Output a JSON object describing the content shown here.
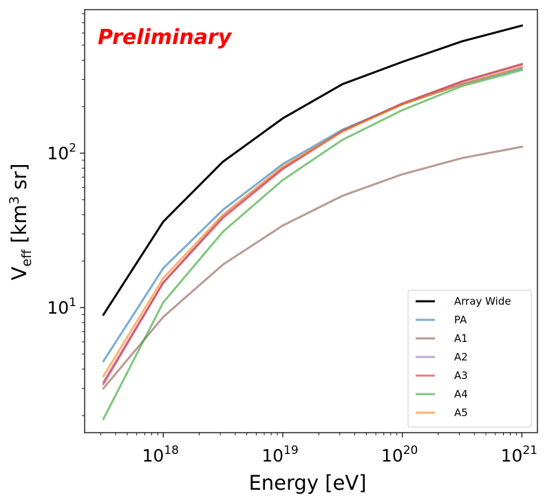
{
  "chart_data": {
    "type": "line",
    "title": "",
    "annotation": "Preliminary",
    "annotation_color": "#ff0000",
    "xlabel": "Energy [eV]",
    "ylabel": {
      "base": "V",
      "subscript": "eff",
      "units_pre": " [km",
      "units_sup": "3",
      "units_post": " sr]"
    },
    "xscale": "log",
    "yscale": "log",
    "xlim": [
      2.2e+17,
      1.35e+21
    ],
    "ylim": [
      1.55,
      850
    ],
    "x": [
      3.16e+17,
      1e+18,
      3.16e+18,
      1e+19,
      3.16e+19,
      1e+20,
      3.16e+20,
      1e+21
    ],
    "x_ticks": [
      {
        "value": 1e+18,
        "base": "10",
        "exp": "18"
      },
      {
        "value": 1e+19,
        "base": "10",
        "exp": "19"
      },
      {
        "value": 1e+20,
        "base": "10",
        "exp": "20"
      },
      {
        "value": 1e+21,
        "base": "10",
        "exp": "21"
      }
    ],
    "y_ticks": [
      {
        "value": 10,
        "base": "10",
        "exp": "1"
      },
      {
        "value": 100,
        "base": "10",
        "exp": "2"
      }
    ],
    "series": [
      {
        "name": "Array Wide",
        "color": "#000000",
        "opacity": 1.0,
        "values": [
          9.0,
          36,
          88,
          168,
          280,
          390,
          530,
          670
        ]
      },
      {
        "name": "PA",
        "color": "#1f77b4",
        "opacity": 0.6,
        "values": [
          4.5,
          18,
          43,
          85,
          142,
          207,
          280,
          355
        ]
      },
      {
        "name": "A1",
        "color": "#8c564b",
        "opacity": 0.6,
        "values": [
          3.0,
          8.7,
          19,
          34,
          53,
          73,
          93,
          110
        ]
      },
      {
        "name": "A2",
        "color": "#9467bd",
        "opacity": 0.6,
        "values": [
          3.3,
          14.5,
          39,
          80,
          140,
          210,
          290,
          375
        ]
      },
      {
        "name": "A3",
        "color": "#d62728",
        "opacity": 0.6,
        "values": [
          3.2,
          14.5,
          38,
          79,
          139,
          209,
          292,
          378
        ]
      },
      {
        "name": "A4",
        "color": "#2ca02c",
        "opacity": 0.6,
        "values": [
          1.9,
          10.8,
          31,
          67,
          122,
          190,
          272,
          345
        ]
      },
      {
        "name": "A5",
        "color": "#ff7f0e",
        "opacity": 0.6,
        "values": [
          3.6,
          15.5,
          40,
          82,
          138,
          207,
          280,
          362
        ]
      }
    ],
    "legend_position": "lower-right",
    "grid": false
  }
}
